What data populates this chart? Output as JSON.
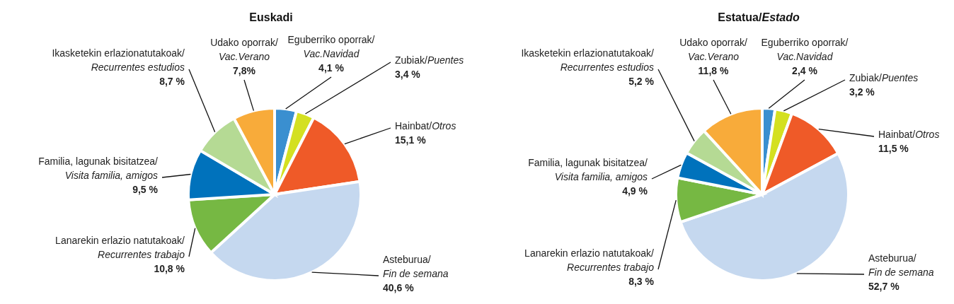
{
  "chart_data": [
    {
      "type": "pie",
      "title": "Euskadi",
      "categories": [
        "Eguberriko oporrak/Vac.Navidad",
        "Zubiak/Puentes",
        "Hainbat/Otros",
        "Asteburua/Fin de semana",
        "Lanarekin erlazio natutakoak/Recurrentes trabajo",
        "Familia, lagunak bisitatzea/Visita familia, amigos",
        "Ikasketekin erlazionatutakoak/Recurrentes estudios",
        "Udako oporrak/Vac.Verano"
      ],
      "values": [
        4.1,
        3.4,
        15.1,
        40.6,
        10.8,
        9.5,
        8.7,
        7.8
      ],
      "value_labels": [
        "4,1 %",
        "3,4 %",
        "15,1 %",
        "40,6 %",
        "10,8 %",
        "9,5 %",
        "8,7 %",
        "7,8%"
      ],
      "colors": [
        "#3a8fd0",
        "#d4e021",
        "#ef5a28",
        "#c5d8ef",
        "#76b843",
        "#0072bc",
        "#b5da94",
        "#f8ab3a"
      ]
    },
    {
      "type": "pie",
      "title": "Estatua/Estado",
      "categories": [
        "Eguberriko oporrak/Vac.Navidad",
        "Zubiak/Puentes",
        "Hainbat/Otros",
        "Asteburua/Fin de semana",
        "Lanarekin erlazio natutakoak/Recurrentes trabajo",
        "Familia, lagunak bisitatzea/Visita familia, amigos",
        "Ikasketekin erlazionatutakoak/Recurrentes estudios",
        "Udako oporrak/Vac.Verano"
      ],
      "values": [
        2.4,
        3.2,
        11.5,
        52.7,
        8.3,
        4.9,
        5.2,
        11.8
      ],
      "value_labels": [
        "2,4 %",
        "3,2 %",
        "11,5 %",
        "52,7 %",
        "8,3 %",
        "4,9 %",
        "5,2 %",
        "11,8 %"
      ],
      "colors": [
        "#3a8fd0",
        "#d4e021",
        "#ef5a28",
        "#c5d8ef",
        "#76b843",
        "#0072bc",
        "#b5da94",
        "#f8ab3a"
      ]
    }
  ]
}
